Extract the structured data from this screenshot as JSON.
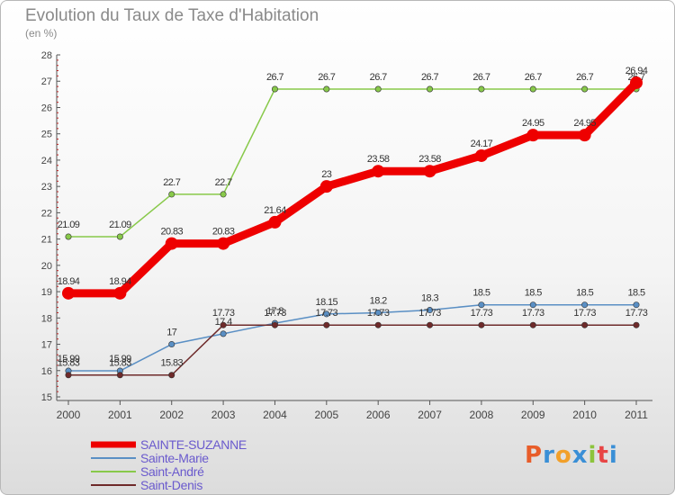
{
  "title": "Evolution du Taux de Taxe d'Habitation",
  "subtitle": "(en %)",
  "logo": {
    "text": "Proxiti"
  },
  "chart_data": {
    "type": "line",
    "title": "Evolution du Taux de Taxe d'Habitation",
    "ylabel": "(en %)",
    "xlabel": "",
    "ylim": [
      15,
      28
    ],
    "yticks": [
      15,
      16,
      17,
      18,
      19,
      20,
      21,
      22,
      23,
      24,
      25,
      26,
      27,
      28
    ],
    "categories": [
      "2000",
      "2001",
      "2002",
      "2003",
      "2004",
      "2005",
      "2006",
      "2007",
      "2008",
      "2009",
      "2010",
      "2011"
    ],
    "grid": false,
    "legend": "bottom-left",
    "series": [
      {
        "name": "Saint-André",
        "color": "#88c94a",
        "thick": false,
        "values": [
          21.09,
          21.09,
          22.7,
          22.7,
          26.7,
          26.7,
          26.7,
          26.7,
          26.7,
          26.7,
          26.7,
          26.7
        ]
      },
      {
        "name": "Sainte-Marie",
        "color": "#5a8fc4",
        "thick": false,
        "values": [
          15.99,
          15.99,
          17,
          17.4,
          17.8,
          18.15,
          18.2,
          18.3,
          18.5,
          18.5,
          18.5,
          18.5
        ]
      },
      {
        "name": "Saint-Denis",
        "color": "#6e2a2a",
        "thick": false,
        "values": [
          15.83,
          15.83,
          15.83,
          17.73,
          17.73,
          17.73,
          17.73,
          17.73,
          17.73,
          17.73,
          17.73,
          17.73
        ]
      },
      {
        "name": "SAINTE-SUZANNE",
        "color": "#ee0000",
        "thick": true,
        "values": [
          18.94,
          18.94,
          20.83,
          20.83,
          21.64,
          23,
          23.58,
          23.58,
          24.17,
          24.95,
          24.95,
          26.94
        ]
      }
    ],
    "legend_order": [
      "SAINTE-SUZANNE",
      "Sainte-Marie",
      "Saint-André",
      "Saint-Denis"
    ]
  }
}
